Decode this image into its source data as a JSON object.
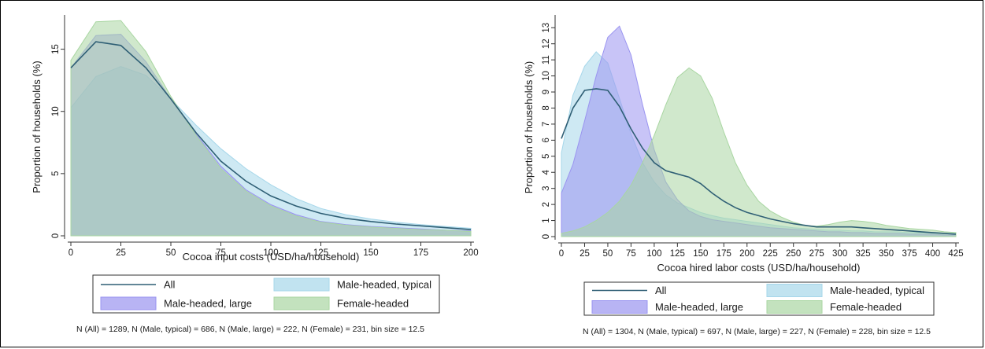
{
  "chart_data": [
    {
      "type": "area",
      "xlabel": "Cocoa input costs (USD/ha/household)",
      "ylabel": "Proportion of households (%)",
      "xlim": [
        0,
        200
      ],
      "ylim": [
        0,
        17.5
      ],
      "x_ticks": [
        "0",
        "25",
        "50",
        "75",
        "100",
        "125",
        "150",
        "175",
        "200"
      ],
      "y_ticks": [
        "0",
        "5",
        "10",
        "15"
      ],
      "x": [
        0,
        12.5,
        25,
        37.5,
        50,
        62.5,
        75,
        87.5,
        100,
        112.5,
        125,
        137.5,
        150,
        162.5,
        175,
        187.5,
        200
      ],
      "series": [
        {
          "name": "Male-headed, typical",
          "kind": "area",
          "color": "#a6d7ea",
          "values": [
            10.3,
            12.8,
            13.6,
            12.9,
            11.0,
            8.9,
            7.0,
            5.4,
            4.1,
            3.0,
            2.2,
            1.7,
            1.35,
            1.1,
            0.9,
            0.75,
            0.6
          ]
        },
        {
          "name": "Male-headed, large",
          "kind": "area",
          "color": "#9a94f0",
          "values": [
            13.5,
            16.1,
            16.2,
            14.0,
            11.0,
            8.2,
            5.6,
            3.7,
            2.5,
            1.7,
            1.15,
            0.9,
            0.75,
            0.65,
            0.55,
            0.45,
            0.4
          ]
        },
        {
          "name": "Female-headed",
          "kind": "area",
          "color": "#a9d6a2",
          "values": [
            14.1,
            17.2,
            17.3,
            14.8,
            11.2,
            8.1,
            5.4,
            3.6,
            2.4,
            1.6,
            1.1,
            0.85,
            0.7,
            0.6,
            0.5,
            0.45,
            0.35
          ]
        },
        {
          "name": "All",
          "kind": "line",
          "color": "#2f5f75",
          "values": [
            13.5,
            15.6,
            15.3,
            13.5,
            11.0,
            8.3,
            6.0,
            4.4,
            3.2,
            2.4,
            1.8,
            1.4,
            1.15,
            0.95,
            0.8,
            0.65,
            0.5
          ]
        }
      ],
      "legend": [
        "All",
        "Male-headed, typical",
        "Male-headed, large",
        "Female-headed"
      ],
      "legend_position": "bottom",
      "grid": false,
      "note": "N (All) = 1289, N (Male, typical) = 686, N (Male, large) = 222, N (Female) = 231, bin size = 12.5"
    },
    {
      "type": "area",
      "xlabel": "Cocoa hired labor costs (USD/ha/household)",
      "ylabel": "Proportion of households (%)",
      "xlim": [
        0,
        425
      ],
      "ylim": [
        0,
        13.6
      ],
      "x_ticks": [
        "0",
        "25",
        "50",
        "75",
        "100",
        "125",
        "150",
        "175",
        "200",
        "225",
        "250",
        "275",
        "300",
        "325",
        "350",
        "375",
        "400",
        "425"
      ],
      "y_ticks": [
        "0",
        "1",
        "2",
        "3",
        "4",
        "5",
        "6",
        "7",
        "8",
        "9",
        "10",
        "11",
        "12",
        "13"
      ],
      "x": [
        0,
        12.5,
        25,
        37.5,
        50,
        62.5,
        75,
        87.5,
        100,
        112.5,
        125,
        137.5,
        150,
        162.5,
        175,
        187.5,
        200,
        212.5,
        225,
        237.5,
        250,
        262.5,
        275,
        287.5,
        300,
        312.5,
        325,
        337.5,
        350,
        362.5,
        375,
        387.5,
        400,
        412.5,
        425
      ],
      "series": [
        {
          "name": "Male-headed, typical",
          "kind": "area",
          "color": "#a6d7ea",
          "values": [
            5.2,
            8.8,
            10.6,
            11.5,
            10.8,
            8.6,
            6.4,
            4.6,
            3.4,
            2.6,
            2.1,
            1.8,
            1.5,
            1.3,
            1.15,
            1.05,
            0.95,
            0.85,
            0.75,
            0.65,
            0.55,
            0.5,
            0.45,
            0.4,
            0.4,
            0.35,
            0.35,
            0.3,
            0.3,
            0.3,
            0.25,
            0.25,
            0.2,
            0.2,
            0.2
          ]
        },
        {
          "name": "Male-headed, large",
          "kind": "area",
          "color": "#9a94f0",
          "values": [
            2.7,
            4.5,
            7.2,
            10.0,
            12.4,
            13.1,
            11.3,
            8.2,
            5.4,
            3.4,
            2.3,
            1.6,
            1.25,
            1.05,
            0.95,
            0.85,
            0.75,
            0.65,
            0.55,
            0.5,
            0.45,
            0.4,
            0.35,
            0.3,
            0.3,
            0.25,
            0.25,
            0.2,
            0.2,
            0.2,
            0.15,
            0.15,
            0.15,
            0.1,
            0.1
          ]
        },
        {
          "name": "Female-headed",
          "kind": "area",
          "color": "#a9d6a2",
          "values": [
            0.2,
            0.35,
            0.6,
            1.0,
            1.5,
            2.2,
            3.2,
            4.6,
            6.3,
            8.2,
            9.9,
            10.5,
            10.0,
            8.6,
            6.5,
            4.6,
            3.2,
            2.2,
            1.6,
            1.2,
            0.9,
            0.7,
            0.65,
            0.75,
            0.9,
            1.0,
            0.95,
            0.85,
            0.7,
            0.6,
            0.5,
            0.45,
            0.4,
            0.3,
            0.25
          ]
        },
        {
          "name": "All",
          "kind": "line",
          "color": "#2f5f75",
          "values": [
            6.1,
            8.0,
            9.1,
            9.2,
            9.1,
            8.1,
            6.7,
            5.5,
            4.6,
            4.1,
            3.9,
            3.7,
            3.3,
            2.7,
            2.2,
            1.8,
            1.5,
            1.3,
            1.1,
            0.95,
            0.8,
            0.7,
            0.6,
            0.6,
            0.6,
            0.6,
            0.55,
            0.5,
            0.45,
            0.4,
            0.35,
            0.3,
            0.25,
            0.2,
            0.15
          ]
        }
      ],
      "legend": [
        "All",
        "Male-headed, typical",
        "Male-headed, large",
        "Female-headed"
      ],
      "legend_position": "bottom",
      "grid": false,
      "note": "N (All) = 1304, N (Male, typical) = 697, N (Male, large) = 227, N (Female) = 228, bin size = 12.5"
    }
  ]
}
